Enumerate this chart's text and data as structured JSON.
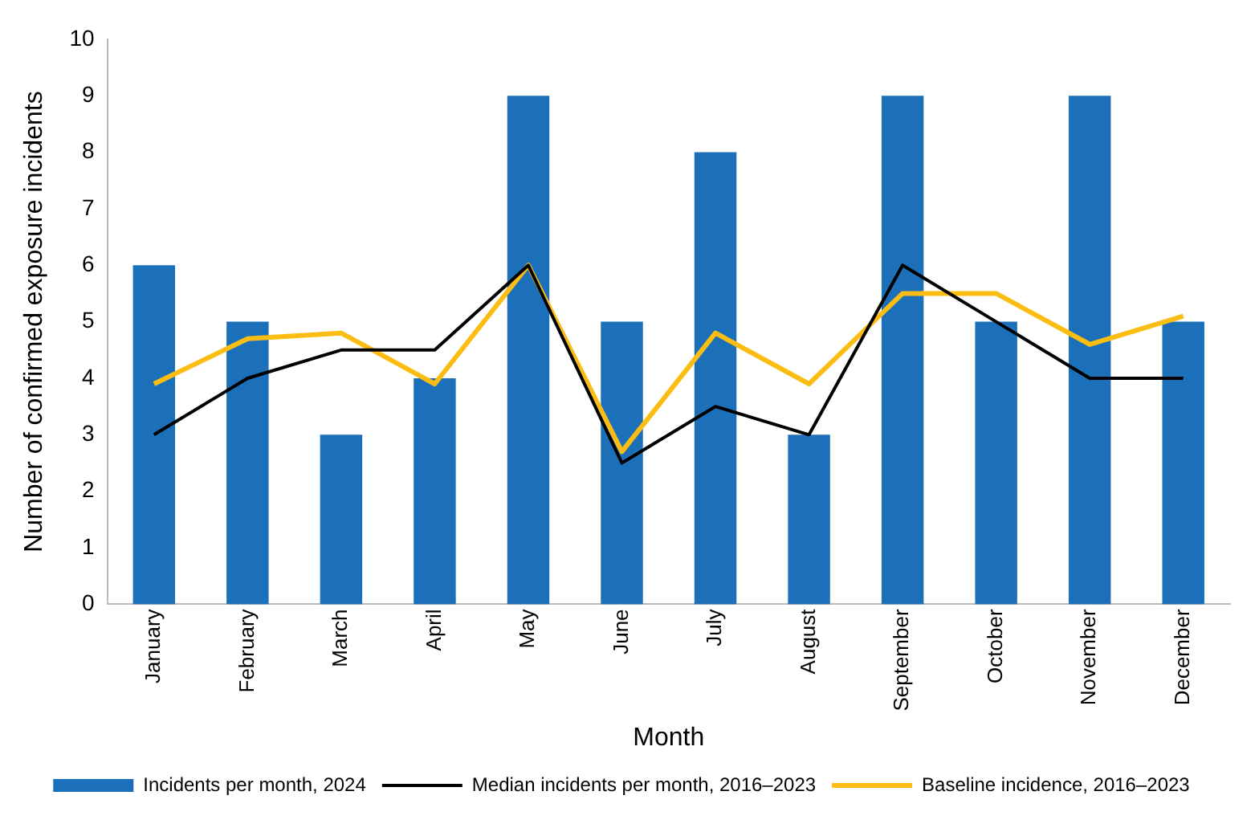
{
  "chart_data": {
    "type": "bar",
    "xlabel": "Month",
    "ylabel": "Number of confirmed exposure incidents",
    "categories": [
      "January",
      "February",
      "March",
      "April",
      "May",
      "June",
      "July",
      "August",
      "September",
      "October",
      "November",
      "December"
    ],
    "series": [
      {
        "name": "Incidents per month, 2024",
        "color": "#1b70b9",
        "values": [
          6,
          5,
          3,
          4,
          9,
          5,
          8,
          3,
          9,
          5,
          9,
          5
        ]
      },
      {
        "name": "Median incidents per month, 2016–2023",
        "type": "line",
        "color": "#000000",
        "values": [
          3,
          4,
          4.5,
          4.5,
          6,
          2.5,
          3.5,
          3,
          6,
          5,
          4,
          4
        ]
      },
      {
        "name": "Baseline incidence, 2016–2023",
        "type": "line",
        "color": "#fbbd12",
        "values": [
          3.9,
          4.7,
          4.8,
          3.9,
          6,
          2.7,
          4.8,
          3.9,
          5.5,
          5.5,
          4.6,
          5.1
        ]
      }
    ],
    "ylim": [
      0,
      10
    ],
    "yticks": [
      0,
      1,
      2,
      3,
      4,
      5,
      6,
      7,
      8,
      9,
      10
    ],
    "grid": false,
    "legend": "bottom",
    "marker": "none",
    "line_style": "solid"
  }
}
